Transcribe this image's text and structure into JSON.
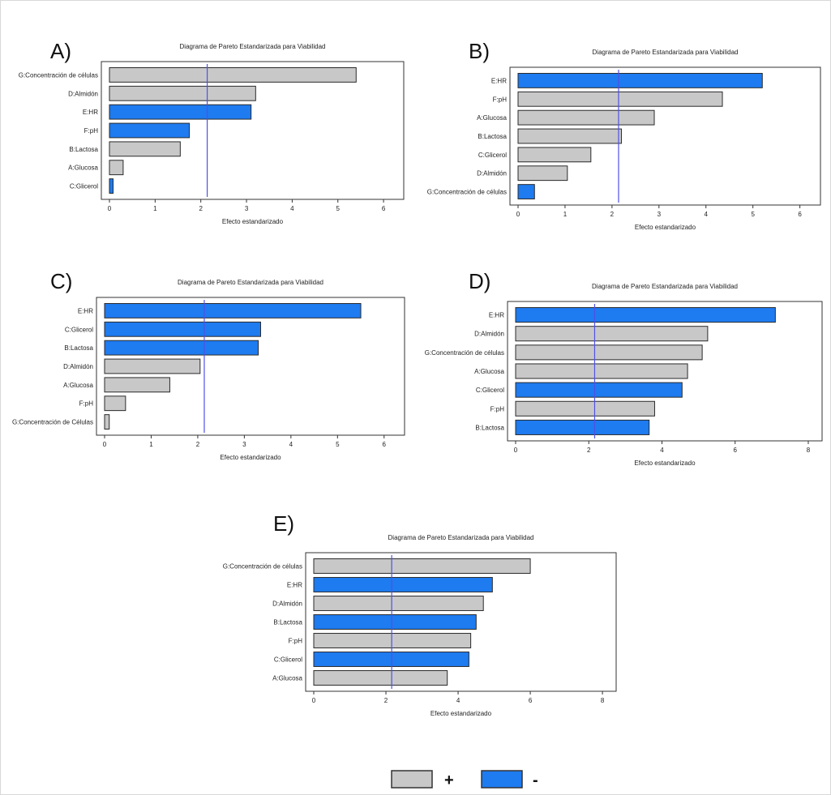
{
  "colors": {
    "positive": "#c8c8c8",
    "negative": "#1e7bf0",
    "threshold": "#5050e6",
    "frame": "#333333"
  },
  "legend": {
    "positive_label": "+",
    "negative_label": "-"
  },
  "chart_data": [
    {
      "type": "bar",
      "orientation": "horizontal",
      "panel": "A)",
      "title": "Diagrama de Pareto Estandarizada para Viabilidad",
      "xlabel": "Efecto estandarizado",
      "xlim": [
        0,
        6.3
      ],
      "xticks": [
        0,
        1,
        2,
        3,
        4,
        5,
        6
      ],
      "threshold": 2.14,
      "categories": [
        "G:Concentración de células",
        "D:Almidón",
        "E:HR",
        "F:pH",
        "B:Lactosa",
        "A:Glucosa",
        "C:Glicerol"
      ],
      "values": [
        5.4,
        3.2,
        3.1,
        1.75,
        1.55,
        0.3,
        0.08
      ],
      "signs": [
        "+",
        "+",
        "-",
        "-",
        "+",
        "+",
        "-"
      ]
    },
    {
      "type": "bar",
      "orientation": "horizontal",
      "panel": "B)",
      "title": "Diagrama de Pareto Estandarizada para Viabilidad",
      "xlabel": "Efecto estandarizado",
      "xlim": [
        0,
        6.3
      ],
      "xticks": [
        0,
        1,
        2,
        3,
        4,
        5,
        6
      ],
      "threshold": 2.14,
      "categories": [
        "E:HR",
        "F:pH",
        "A:Glucosa",
        "B:Lactosa",
        "C:Glicerol",
        "D:Almidón",
        "G:Concentración de células"
      ],
      "values": [
        5.2,
        4.35,
        2.9,
        2.2,
        1.55,
        1.05,
        0.35
      ],
      "signs": [
        "-",
        "+",
        "+",
        "+",
        "+",
        "+",
        "-"
      ]
    },
    {
      "type": "bar",
      "orientation": "horizontal",
      "panel": "C)",
      "title": "Diagrama de Pareto Estandarizada para Viabilidad",
      "xlabel": "Efecto estandarizado",
      "xlim": [
        0,
        6.3
      ],
      "xticks": [
        0,
        1,
        2,
        3,
        4,
        5,
        6
      ],
      "threshold": 2.14,
      "categories": [
        "E:HR",
        "C:Glicerol",
        "B:Lactosa",
        "D:Almidón",
        "A:Glucosa",
        "F:pH",
        "G:Concentración de Células"
      ],
      "values": [
        5.5,
        3.35,
        3.3,
        2.05,
        1.4,
        0.45,
        0.1
      ],
      "signs": [
        "-",
        "-",
        "-",
        "+",
        "+",
        "+",
        "+"
      ]
    },
    {
      "type": "bar",
      "orientation": "horizontal",
      "panel": "D)",
      "title": "Diagrama de Pareto Estandarizada para Viabilidad",
      "xlabel": "Efecto estandarizado",
      "xlim": [
        0,
        8.2
      ],
      "xticks": [
        0,
        2,
        4,
        6,
        8
      ],
      "threshold": 2.16,
      "categories": [
        "E:HR",
        "D:Almidón",
        "G:Concentración de células",
        "A:Glucosa",
        "C:Glicerol",
        "F:pH",
        "B:Lactosa"
      ],
      "values": [
        7.1,
        5.25,
        5.1,
        4.7,
        4.55,
        3.8,
        3.65
      ],
      "signs": [
        "-",
        "+",
        "+",
        "+",
        "-",
        "+",
        "-"
      ]
    },
    {
      "type": "bar",
      "orientation": "horizontal",
      "panel": "E)",
      "title": "Diagrama de Pareto Estandarizada para Viabilidad",
      "xlabel": "Efecto estandarizado",
      "xlim": [
        0,
        8.2
      ],
      "xticks": [
        0,
        2,
        4,
        6,
        8
      ],
      "threshold": 2.16,
      "categories": [
        "G:Concentración de células",
        "E:HR",
        "D:Almidón",
        "B:Lactosa",
        "F:pH",
        "C:Glicerol",
        "A:Glucosa"
      ],
      "values": [
        6.0,
        4.95,
        4.7,
        4.5,
        4.35,
        4.3,
        3.7
      ],
      "signs": [
        "+",
        "-",
        "+",
        "-",
        "+",
        "-",
        "+"
      ]
    }
  ]
}
